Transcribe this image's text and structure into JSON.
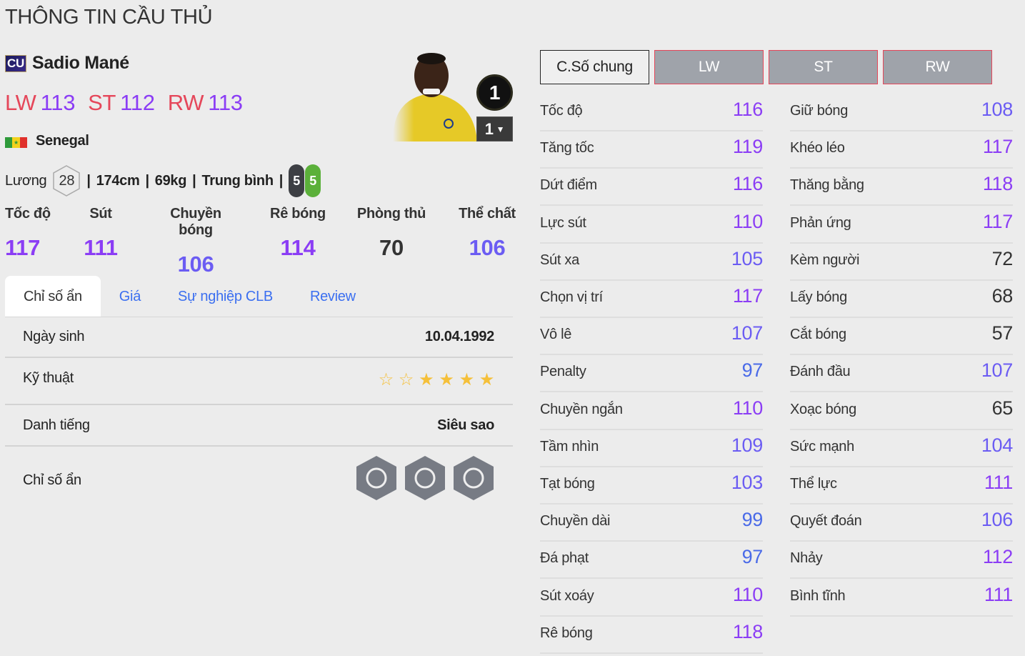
{
  "page_title": "THÔNG TIN CẦU THỦ",
  "player": {
    "season_badge": "CU",
    "name": "Sadio Mané",
    "nation": "Senegal",
    "positions": [
      {
        "pos": "LW",
        "ovr": "113"
      },
      {
        "pos": "ST",
        "ovr": "112"
      },
      {
        "pos": "RW",
        "ovr": "113"
      }
    ],
    "salary_label": "Lương",
    "salary": "28",
    "height": "174cm",
    "weight": "69kg",
    "body_type": "Trung bình",
    "left_foot": "5",
    "right_foot": "5",
    "overall_circle": "1",
    "upgrade_level": "1"
  },
  "summary": [
    {
      "label": "Tốc độ",
      "value": "117"
    },
    {
      "label": "Sút",
      "value": "111"
    },
    {
      "label": "Chuyền bóng",
      "value": "106"
    },
    {
      "label": "Rê bóng",
      "value": "114"
    },
    {
      "label": "Phòng thủ",
      "value": "70"
    },
    {
      "label": "Thể chất",
      "value": "106"
    }
  ],
  "tabs": [
    "Chỉ số ẩn",
    "Giá",
    "Sự nghiệp CLB",
    "Review"
  ],
  "details": {
    "birth_label": "Ngày sinh",
    "birth": "10.04.1992",
    "skill_label": "Kỹ thuật",
    "skill_stars": 4,
    "skill_max": 6,
    "fame_label": "Danh tiếng",
    "fame": "Siêu sao",
    "traits_label": "Chỉ số ẩn",
    "traits": [
      "hero-head-icon",
      "speed-dribbler-icon",
      "tactical-route-icon"
    ]
  },
  "stat_tabs": [
    "C.Số chung",
    "LW",
    "ST",
    "RW"
  ],
  "colors": {
    "accent_red": "#e5475a",
    "tier_110": "#8b3df5",
    "tier_100": "#6b5cf3",
    "tier_90": "#4a6ae8",
    "low": "#333333"
  },
  "stats_left": [
    [
      "Tốc độ",
      "116"
    ],
    [
      "Tăng tốc",
      "119"
    ],
    [
      "Dứt điểm",
      "116"
    ],
    [
      "Lực sút",
      "110"
    ],
    [
      "Sút xa",
      "105"
    ],
    [
      "Chọn vị trí",
      "117"
    ],
    [
      "Vô lê",
      "107"
    ],
    [
      "Penalty",
      "97"
    ],
    [
      "Chuyền ngắn",
      "110"
    ],
    [
      "Tầm nhìn",
      "109"
    ],
    [
      "Tạt bóng",
      "103"
    ],
    [
      "Chuyền dài",
      "99"
    ],
    [
      "Đá phạt",
      "97"
    ],
    [
      "Sút xoáy",
      "110"
    ],
    [
      "Rê bóng",
      "118"
    ]
  ],
  "stats_right": [
    [
      "Giữ bóng",
      "108"
    ],
    [
      "Khéo léo",
      "117"
    ],
    [
      "Thăng bằng",
      "118"
    ],
    [
      "Phản ứng",
      "117"
    ],
    [
      "Kèm người",
      "72"
    ],
    [
      "Lấy bóng",
      "68"
    ],
    [
      "Cắt bóng",
      "57"
    ],
    [
      "Đánh đầu",
      "107"
    ],
    [
      "Xoạc bóng",
      "65"
    ],
    [
      "Sức mạnh",
      "104"
    ],
    [
      "Thể lực",
      "111"
    ],
    [
      "Quyết đoán",
      "106"
    ],
    [
      "Nhảy",
      "112"
    ],
    [
      "Bình tĩnh",
      "111"
    ]
  ]
}
